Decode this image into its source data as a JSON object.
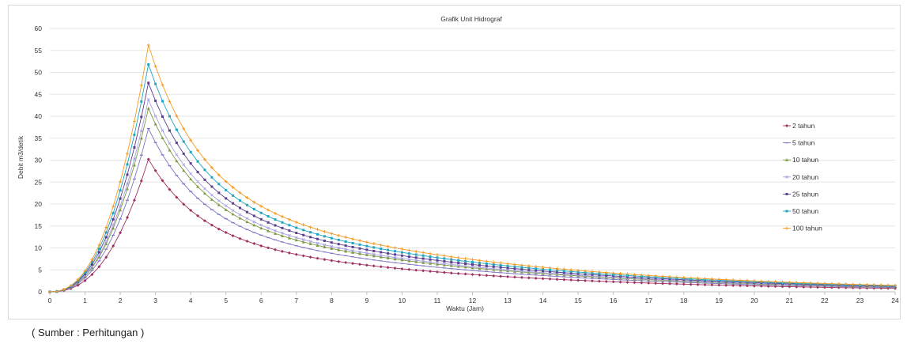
{
  "chart_data": {
    "type": "line",
    "title": "Grafik Unit Hidrograf",
    "xlabel": "Waktu (Jam)",
    "ylabel": "Debit m3/detik",
    "xlim": [
      0,
      24
    ],
    "ylim": [
      0,
      60
    ],
    "x_ticks": [
      "0",
      "1",
      "2",
      "3",
      "4",
      "5",
      "6",
      "7",
      "8",
      "9",
      "10",
      "11",
      "12",
      "13",
      "14",
      "15",
      "16",
      "17",
      "18",
      "19",
      "20",
      "21",
      "22",
      "23",
      "24"
    ],
    "y_ticks": [
      "0",
      "5",
      "10",
      "15",
      "20",
      "25",
      "30",
      "35",
      "40",
      "45",
      "50",
      "55",
      "60"
    ],
    "grid": "horizontal",
    "legend_position": "right",
    "x_step": 0.2,
    "shape": {
      "peak_time": 2.8,
      "rising_exponent": 2.4,
      "k_fast": 0.72,
      "k_slow": 0.135,
      "fast_fraction": 0.55
    },
    "series": [
      {
        "name": "2 tahun",
        "peak": 30.2,
        "color": "#a03060",
        "marker": "diamond"
      },
      {
        "name": "5 tahun",
        "peak": 37.2,
        "color": "#7e74c4",
        "marker": "dash"
      },
      {
        "name": "10 tahun",
        "peak": 41.8,
        "color": "#7a9a3e",
        "marker": "triangle"
      },
      {
        "name": "20 tahun",
        "peak": 43.8,
        "color": "#a8a0e0",
        "marker": "x"
      },
      {
        "name": "25 tahun",
        "peak": 47.6,
        "color": "#5b3f8f",
        "marker": "square"
      },
      {
        "name": "50 tahun",
        "peak": 51.8,
        "color": "#1fa5c0",
        "marker": "square"
      },
      {
        "name": "100 tahun",
        "peak": 56.2,
        "color": "#f49b22",
        "marker": "plus"
      }
    ]
  },
  "source_note": "( Sumber : Perhitungan )"
}
